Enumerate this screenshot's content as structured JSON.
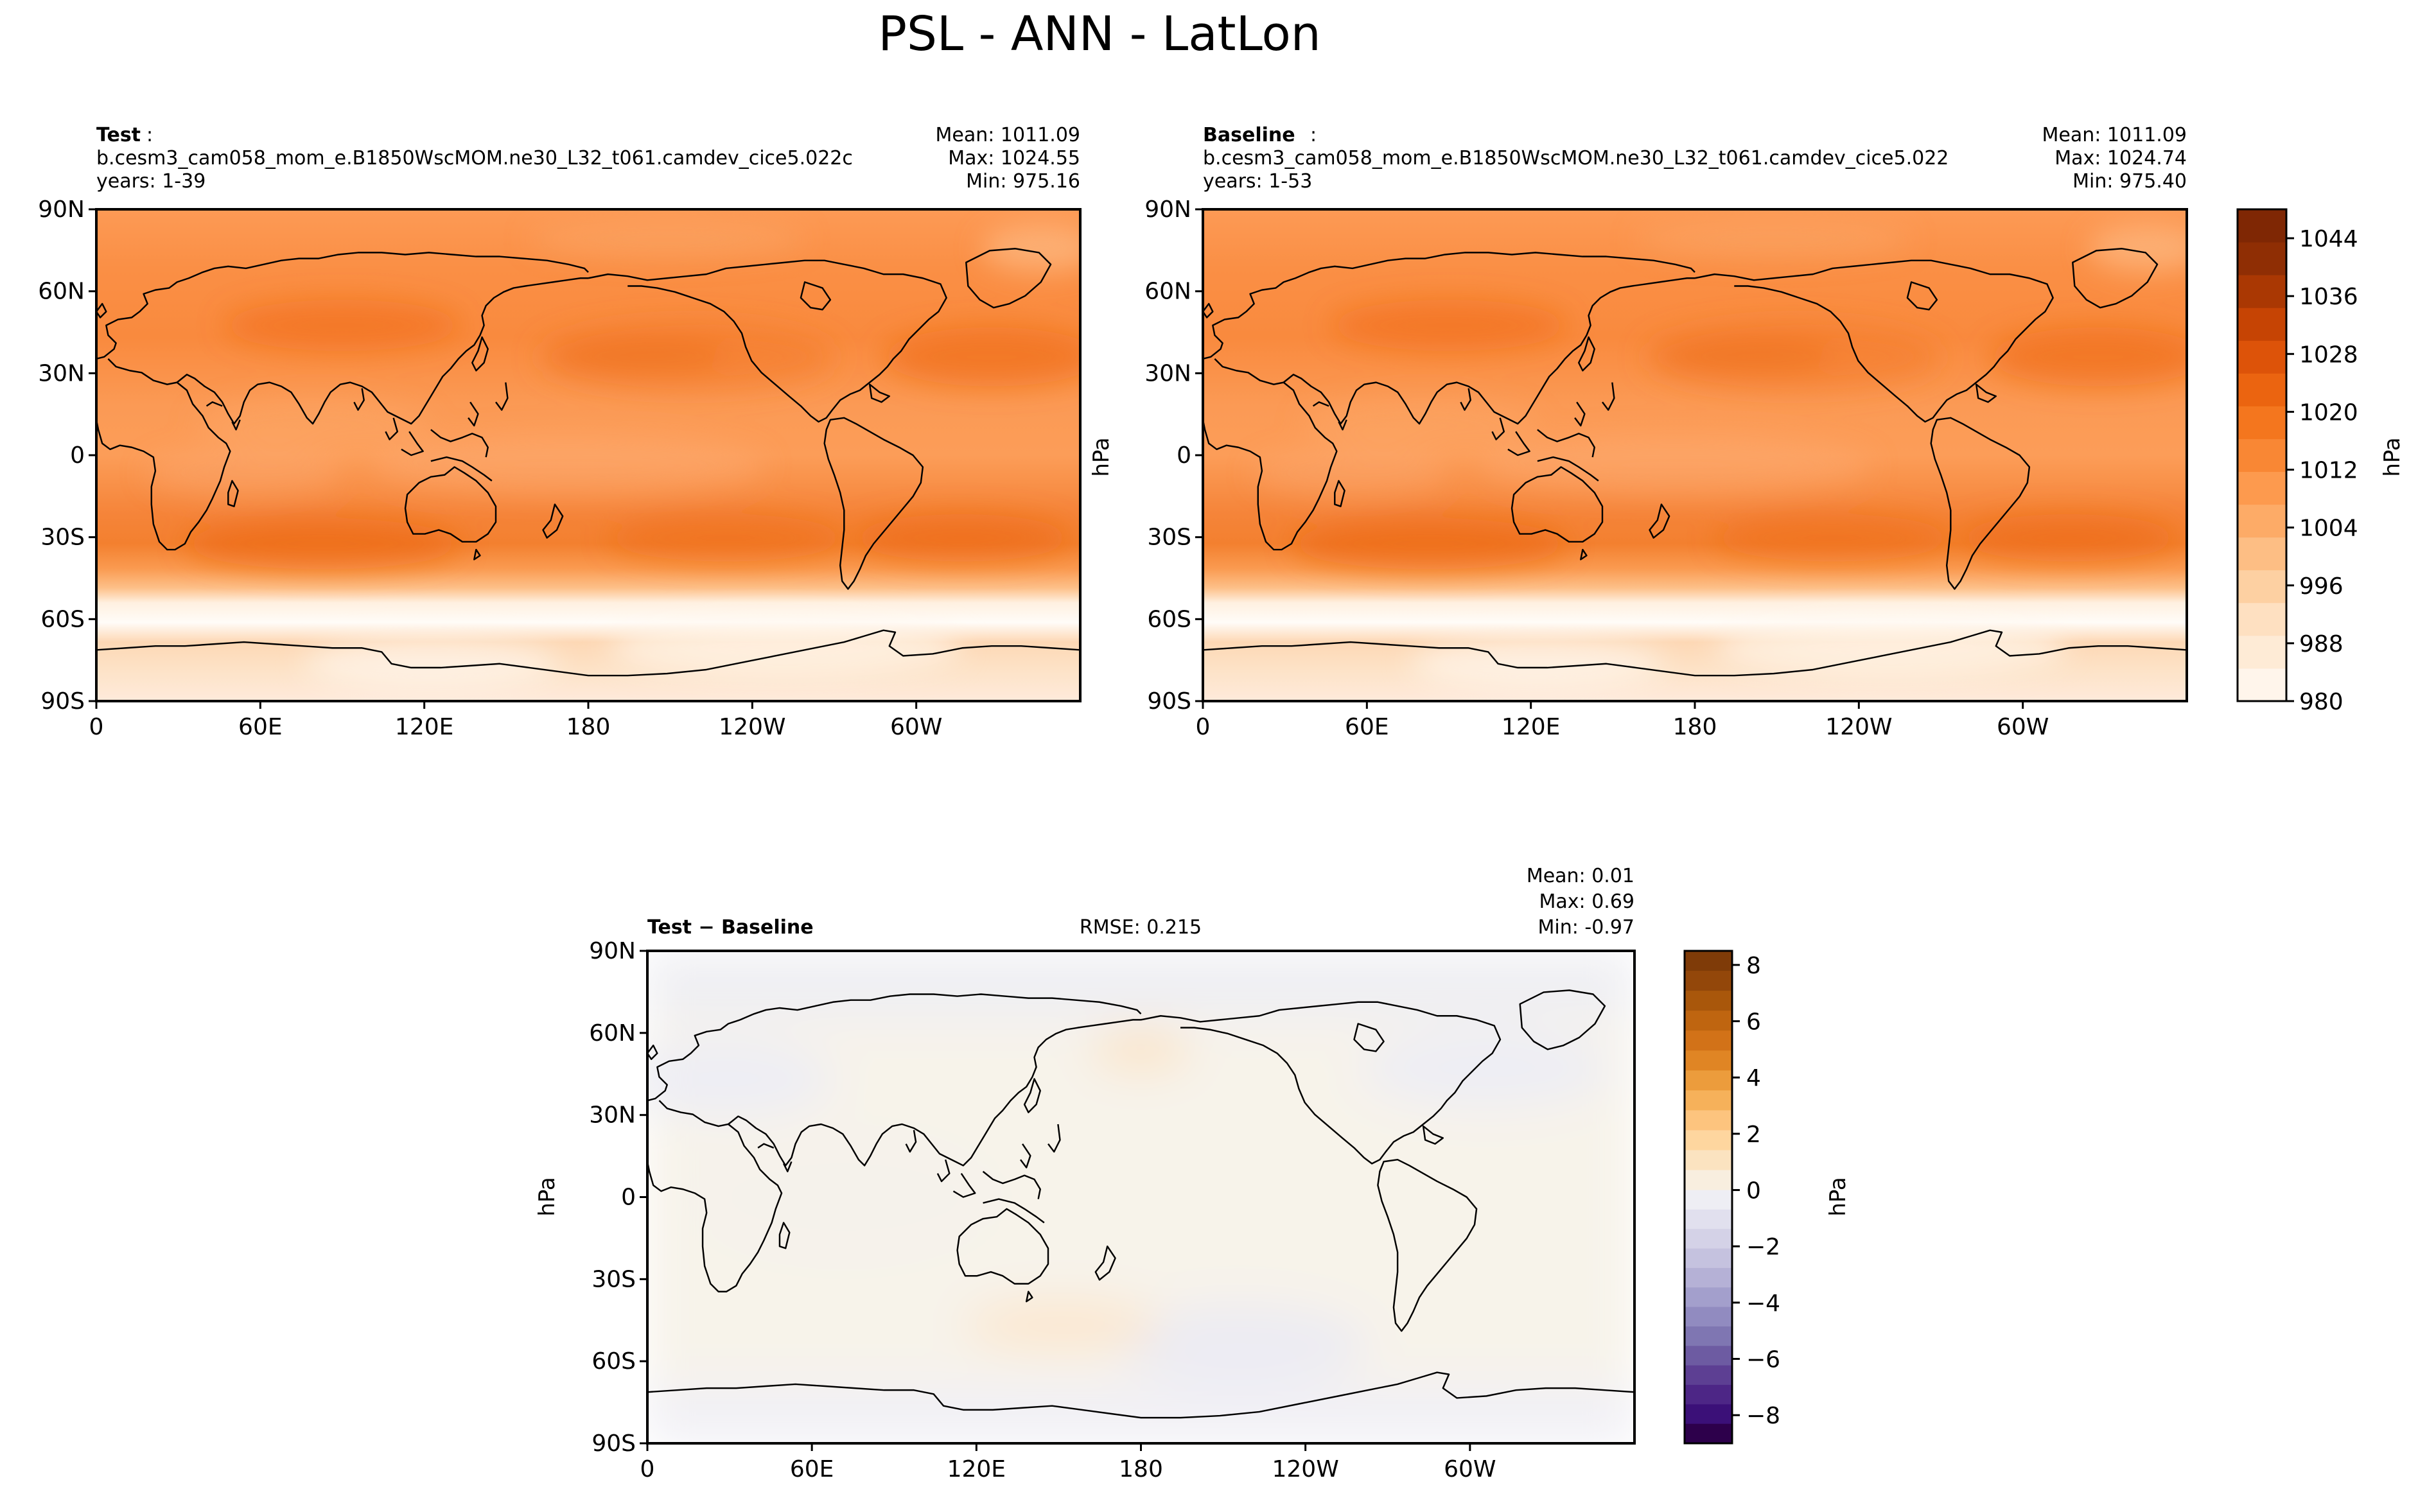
{
  "figure": {
    "title": "PSL - ANN - LatLon"
  },
  "test_panel": {
    "label": "Test",
    "case": "b.cesm3_cam058_mom_e.B1850WscMOM.ne30_L32_t061.camdev_cice5.022c",
    "years": "years: 1-39",
    "mean": "Mean: 1011.09",
    "max": "Max: 1024.55",
    "min": "Min: 975.16"
  },
  "baseline_panel": {
    "label": "Baseline",
    "case": "b.cesm3_cam058_mom_e.B1850WscMOM.ne30_L32_t061.camdev_cice5.022",
    "years": "years: 1-53",
    "mean": "Mean: 1011.09",
    "max": "Max: 1024.74",
    "min": "Min: 975.40",
    "ylabel": "hPa"
  },
  "diff_panel": {
    "label": "Test − Baseline",
    "rmse": "RMSE: 0.215",
    "mean": "Mean:  0.01",
    "max": "Max:  0.69",
    "min": "Min: -0.97",
    "ylabel": "hPa"
  },
  "axes": {
    "lat_ticks": [
      "90N",
      "60N",
      "30N",
      "0",
      "30S",
      "60S",
      "90S"
    ],
    "lon_ticks": [
      "0",
      "60E",
      "120E",
      "180",
      "120W",
      "60W"
    ]
  },
  "colorbar_main": {
    "label": "hPa",
    "ticks": [
      "980",
      "988",
      "996",
      "1004",
      "1012",
      "1020",
      "1028",
      "1036",
      "1044"
    ],
    "colors": [
      "#fff5eb",
      "#feebd6",
      "#fee0c1",
      "#fdd0a2",
      "#fdbe84",
      "#fdab67",
      "#fd9a4e",
      "#f98734",
      "#f4761e",
      "#eb6410",
      "#dd5309",
      "#c64404",
      "#aa3803",
      "#8f2e04",
      "#7f2704"
    ]
  },
  "colorbar_diff": {
    "label": "hPa",
    "ticks": [
      "8",
      "6",
      "4",
      "2",
      "0",
      "−2",
      "−4",
      "−6",
      "−8"
    ],
    "top_colors": [
      "#7f3b08",
      "#93470a",
      "#a9570b",
      "#bf6510",
      "#d27218",
      "#e08524",
      "#ec9c3c",
      "#f6b15a",
      "#fdc47e",
      "#fed69f",
      "#fbe3c0",
      "#f8eedf"
    ],
    "bottom_colors": [
      "#eeeef4",
      "#e1e0ee",
      "#d4d2e7",
      "#c5c2df",
      "#b5b1d6",
      "#a39fcc",
      "#918bc0",
      "#7f76b2",
      "#6d5ba2",
      "#5d3f93",
      "#4d2686",
      "#3b1078",
      "#2d004b"
    ]
  },
  "chart_data": [
    {
      "type": "heatmap",
      "title": "Test",
      "xlabel": "",
      "ylabel": "",
      "x_ticks": [
        "0",
        "60E",
        "120E",
        "180",
        "120W",
        "60W"
      ],
      "y_ticks": [
        "90N",
        "60N",
        "30N",
        "0",
        "30S",
        "60S",
        "90S"
      ],
      "stats": {
        "mean": 1011.09,
        "max": 1024.55,
        "min": 975.16
      },
      "colorscale_range": [
        980,
        1048
      ]
    },
    {
      "type": "heatmap",
      "title": "Baseline",
      "xlabel": "",
      "ylabel": "hPa",
      "x_ticks": [
        "0",
        "60E",
        "120E",
        "180",
        "120W",
        "60W"
      ],
      "y_ticks": [
        "90N",
        "60N",
        "30N",
        "0",
        "30S",
        "60S",
        "90S"
      ],
      "stats": {
        "mean": 1011.09,
        "max": 1024.74,
        "min": 975.4
      },
      "colorscale_range": [
        980,
        1048
      ]
    },
    {
      "type": "heatmap",
      "title": "Test − Baseline",
      "xlabel": "",
      "ylabel": "hPa",
      "x_ticks": [
        "0",
        "60E",
        "120E",
        "180",
        "120W",
        "60W"
      ],
      "y_ticks": [
        "90N",
        "60N",
        "30N",
        "0",
        "30S",
        "60S",
        "90S"
      ],
      "stats": {
        "mean": 0.01,
        "max": 0.69,
        "min": -0.97,
        "rmse": 0.215
      },
      "colorscale_range": [
        -9,
        8.5
      ]
    }
  ]
}
